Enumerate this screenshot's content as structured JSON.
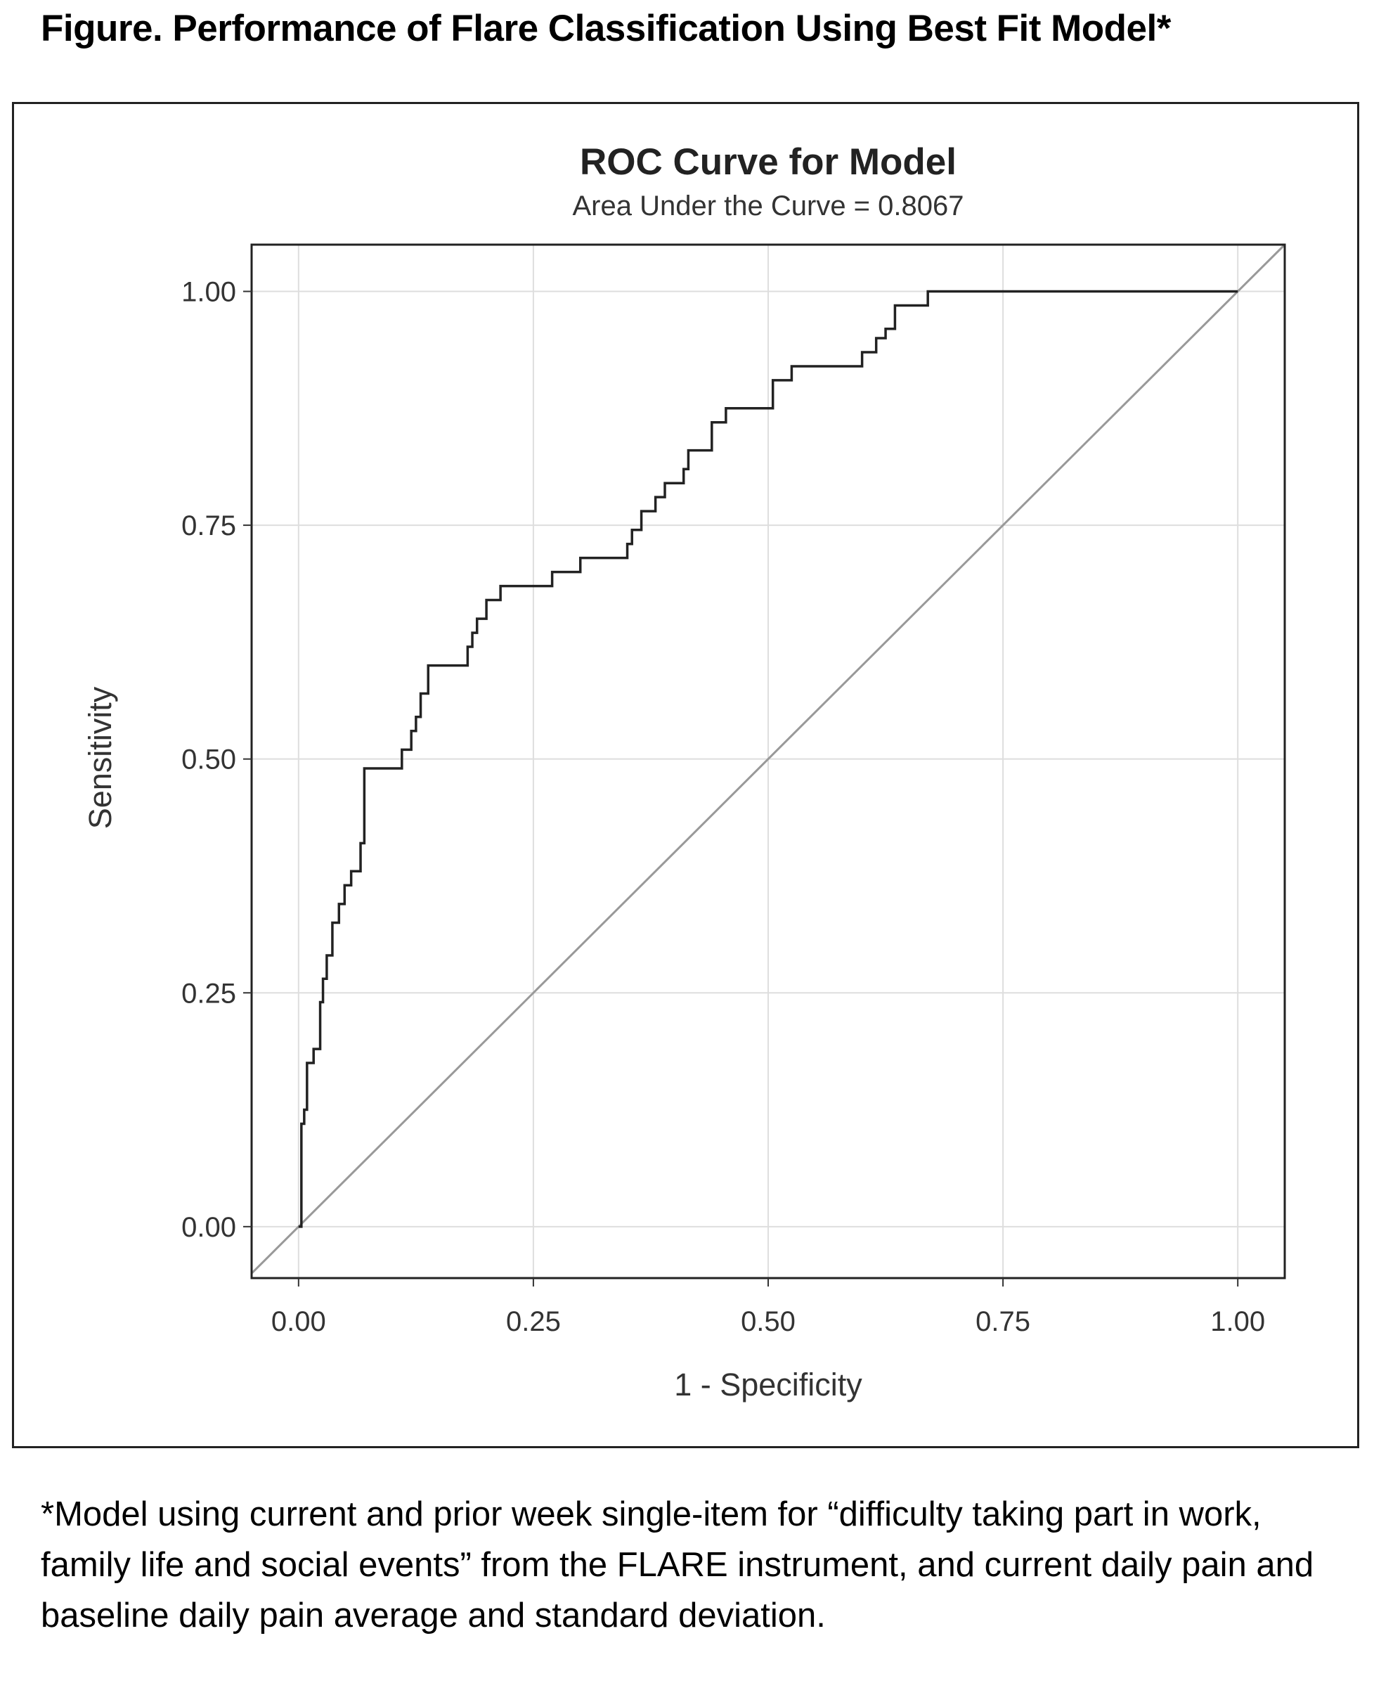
{
  "figure_caption": "Figure. Performance of Flare Classification Using Best Fit Model*",
  "footnote": "*Model using current and prior week single-item for “difficulty taking part in work, family life and social events” from the FLARE instrument, and current daily pain and baseline daily pain average and standard deviation.",
  "colors": {
    "curve": "#222222",
    "reference": "#999999",
    "grid": "#dedede",
    "frame": "#222222"
  },
  "chart_data": {
    "type": "line",
    "title": "ROC Curve for Model",
    "subtitle": "Area Under the Curve = 0.8067",
    "xlabel": "1 - Specificity",
    "ylabel": "Sensitivity",
    "xlim": [
      -0.05,
      1.05
    ],
    "ylim": [
      -0.055,
      1.05
    ],
    "xticks": [
      0,
      0.25,
      0.5,
      0.75,
      1.0
    ],
    "yticks": [
      0,
      0.25,
      0.5,
      0.75,
      1.0
    ],
    "xtick_labels": [
      "0.00",
      "0.25",
      "0.50",
      "0.75",
      "1.00"
    ],
    "ytick_labels": [
      "0.00",
      "0.25",
      "0.50",
      "0.75",
      "1.00"
    ],
    "grid": true,
    "series": [
      {
        "style": "step",
        "x": [
          0,
          0.003,
          0.006,
          0.009,
          0.016,
          0.023,
          0.026,
          0.03,
          0.036,
          0.043,
          0.049,
          0.056,
          0.066,
          0.07,
          0.11,
          0.12,
          0.125,
          0.13,
          0.138,
          0.18,
          0.185,
          0.19,
          0.2,
          0.215,
          0.22,
          0.27,
          0.3,
          0.35,
          0.355,
          0.365,
          0.38,
          0.39,
          0.41,
          0.415,
          0.44,
          0.455,
          0.505,
          0.525,
          0.6,
          0.615,
          0.625,
          0.635,
          0.67,
          1.0
        ],
        "y": [
          0,
          0.11,
          0.125,
          0.175,
          0.19,
          0.24,
          0.265,
          0.29,
          0.325,
          0.345,
          0.365,
          0.38,
          0.41,
          0.49,
          0.51,
          0.53,
          0.545,
          0.57,
          0.6,
          0.62,
          0.635,
          0.65,
          0.67,
          0.685,
          0.685,
          0.7,
          0.715,
          0.73,
          0.745,
          0.765,
          0.78,
          0.795,
          0.81,
          0.83,
          0.86,
          0.875,
          0.905,
          0.92,
          0.935,
          0.95,
          0.96,
          0.985,
          1.0,
          1.0
        ]
      },
      {
        "style": "reference",
        "x": [
          -0.05,
          1.05
        ],
        "y": [
          -0.05,
          1.05
        ]
      }
    ]
  }
}
